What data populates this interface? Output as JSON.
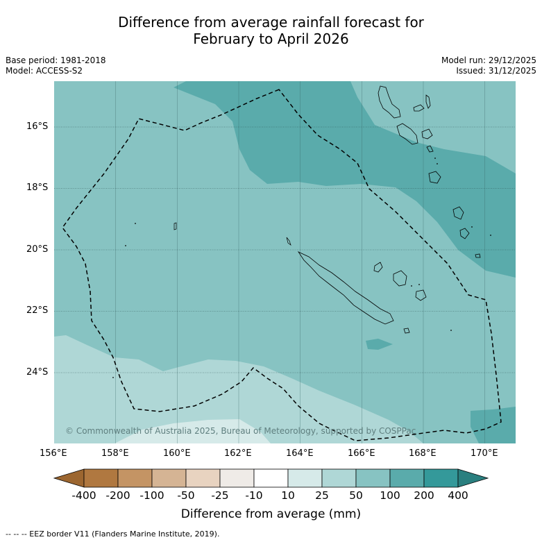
{
  "title": {
    "line1": "Difference from average rainfall forecast for",
    "line2": "February to April 2026"
  },
  "meta": {
    "base_period": "Base period: 1981-2018",
    "model": "Model: ACCESS-S2",
    "model_run": "Model run: 29/12/2025",
    "issued": "Issued: 31/12/2025"
  },
  "map": {
    "lon_labels": [
      "156°E",
      "158°E",
      "160°E",
      "162°E",
      "164°E",
      "166°E",
      "168°E",
      "170°E"
    ],
    "lat_labels": [
      "16°S",
      "18°S",
      "20°S",
      "22°S",
      "24°S"
    ],
    "copyright": "© Commonwealth of Australia 2025, Bureau of Meteorology, supported by COSPPac"
  },
  "colorbar": {
    "labels": [
      "-400",
      "-200",
      "-100",
      "-50",
      "-25",
      "-10",
      "10",
      "25",
      "50",
      "100",
      "200",
      "400"
    ],
    "colors": [
      "#9c6630",
      "#b07840",
      "#c49464",
      "#d5b494",
      "#e8d3c0",
      "#efebe7",
      "#ffffff",
      "#d6eae9",
      "#afd7d6",
      "#87c3c2",
      "#5aabab",
      "#34999a",
      "#2a7f7f"
    ],
    "title": "Difference from average (mm)"
  },
  "legend_note": "--  --  -- EEZ border V11 (Flanders Marine Institute, 2019)."
}
